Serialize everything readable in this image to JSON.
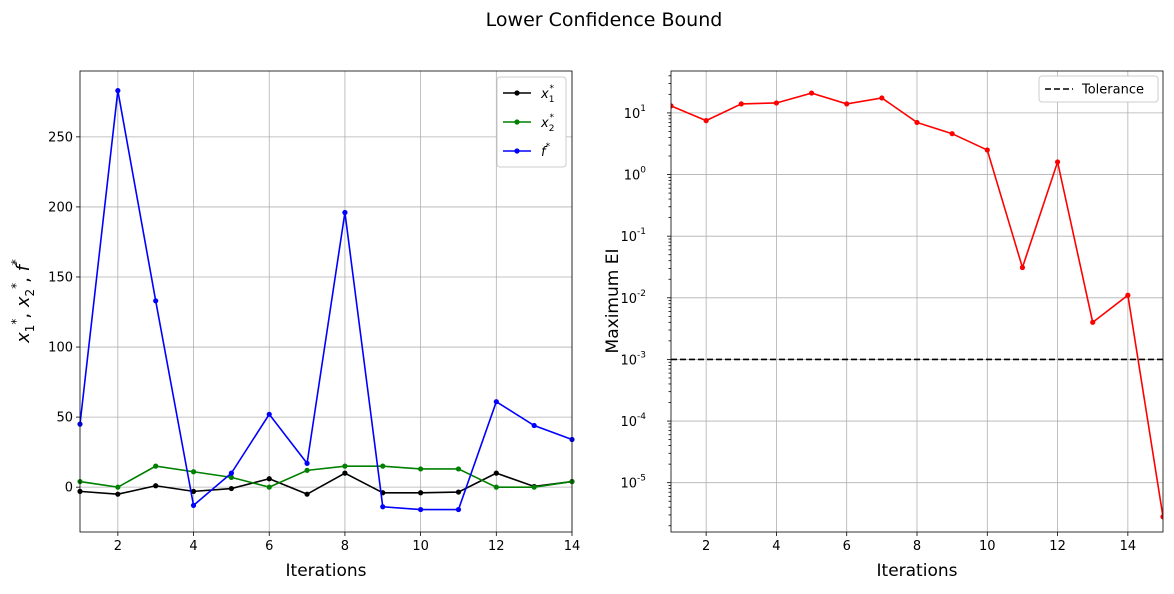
{
  "suptitle": "Lower Confidence Bound",
  "chart_data": [
    {
      "type": "line",
      "xlabel": "Iterations",
      "ylabel_parts": [
        "x",
        "1",
        "*",
        ", ",
        "x",
        "2",
        "*",
        ", ",
        "f",
        "*"
      ],
      "xlim": [
        1,
        14
      ],
      "ylim": [
        -32,
        297
      ],
      "xticks": [
        2,
        4,
        6,
        8,
        10,
        12,
        14
      ],
      "yticks": [
        0,
        50,
        100,
        150,
        200,
        250
      ],
      "grid": true,
      "legend_position": "top-right",
      "x": [
        1,
        2,
        3,
        4,
        5,
        6,
        7,
        8,
        9,
        10,
        11,
        12,
        13,
        14
      ],
      "series": [
        {
          "name": "x",
          "name_sub": "1",
          "name_sup": "*",
          "color": "#000000",
          "values": [
            -3,
            -5,
            1,
            -3,
            -1,
            6,
            -5,
            10,
            -4,
            -4,
            -3.5,
            10,
            0.5,
            4
          ]
        },
        {
          "name": "x",
          "name_sub": "2",
          "name_sup": "*",
          "color": "#008000",
          "values": [
            4,
            0,
            15,
            11,
            7,
            0,
            12,
            15,
            15,
            13,
            13,
            0,
            0,
            4
          ]
        },
        {
          "name": "f",
          "name_sub": "",
          "name_sup": "*",
          "color": "#0000ff",
          "values": [
            45,
            283,
            133,
            -13,
            10,
            52,
            17,
            196,
            -14,
            -16,
            -16,
            61,
            44,
            34
          ]
        }
      ]
    },
    {
      "type": "line",
      "xlabel": "Iterations",
      "ylabel": "Maximum EI",
      "yscale": "log",
      "xlim": [
        1,
        15
      ],
      "ylim_exp": [
        -5.8,
        1.68
      ],
      "xticks": [
        2,
        4,
        6,
        8,
        10,
        12,
        14
      ],
      "ytick_exponents": [
        -5,
        -4,
        -3,
        -2,
        -1,
        0,
        1
      ],
      "ytick_base": "10",
      "grid": true,
      "legend_position": "top-right",
      "x": [
        1,
        2,
        3,
        4,
        5,
        6,
        7,
        8,
        9,
        10,
        11,
        12,
        13,
        14,
        15
      ],
      "series": [
        {
          "name": "Maximum EI",
          "color": "#ff0000",
          "values": [
            13,
            7.5,
            14,
            14.5,
            21,
            14,
            17.5,
            7,
            4.6,
            2.5,
            0.031,
            1.6,
            0.004,
            0.011,
            2.8e-06
          ]
        }
      ],
      "reference_lines": [
        {
          "name": "Tolerance",
          "value": 0.001,
          "color": "#000000",
          "style": "dashed"
        }
      ]
    }
  ]
}
